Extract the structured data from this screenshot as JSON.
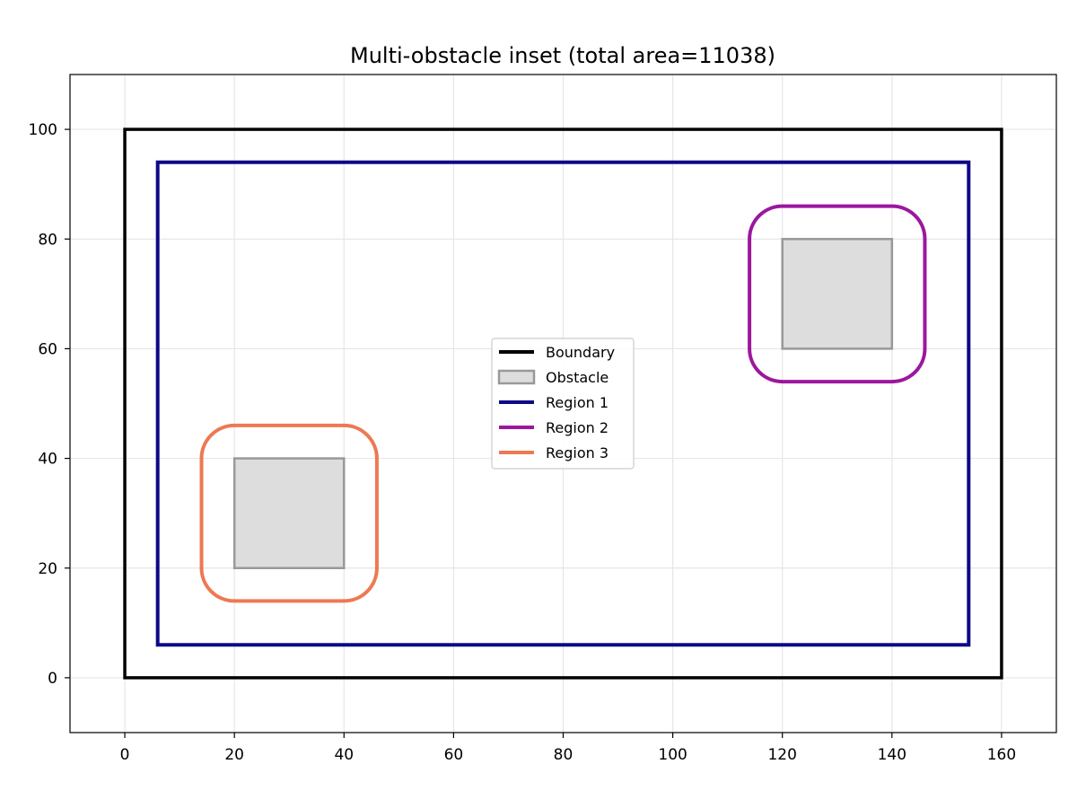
{
  "chart_data": {
    "type": "line",
    "title": "Multi-obstacle inset (total area=11038)",
    "xlabel": "",
    "ylabel": "",
    "xlim": [
      -10,
      170
    ],
    "ylim": [
      -10,
      110
    ],
    "xticks": [
      0,
      20,
      40,
      60,
      80,
      100,
      120,
      140,
      160
    ],
    "yticks": [
      0,
      20,
      40,
      60,
      80,
      100
    ],
    "grid": true,
    "legend_position": "center",
    "series": [
      {
        "name": "Boundary",
        "kind": "rect",
        "x0": 0,
        "y0": 0,
        "x1": 160,
        "y1": 100,
        "radius": 0,
        "color": "#000000",
        "width": 3.5
      },
      {
        "name": "Region 1",
        "kind": "rect",
        "x0": 6,
        "y0": 6,
        "x1": 154,
        "y1": 94,
        "radius": 0,
        "color": "#0d0887",
        "width": 4
      },
      {
        "name": "Region 2",
        "kind": "rect",
        "x0": 114,
        "y0": 54,
        "x1": 146,
        "y1": 86,
        "radius": 6,
        "color": "#9c179e",
        "width": 4
      },
      {
        "name": "Region 3",
        "kind": "rect",
        "x0": 14,
        "y0": 14,
        "x1": 46,
        "y1": 46,
        "radius": 6,
        "color": "#ed7953",
        "width": 4
      }
    ],
    "obstacles": [
      {
        "x0": 20,
        "y0": 20,
        "x1": 40,
        "y1": 40
      },
      {
        "x0": 120,
        "y0": 60,
        "x1": 140,
        "y1": 80
      }
    ],
    "obstacle_style": {
      "fill": "#dddddd",
      "stroke": "#999999"
    },
    "legend": [
      {
        "label": "Boundary",
        "kind": "line",
        "color": "#000000"
      },
      {
        "label": "Obstacle",
        "kind": "patch",
        "color": "#dddddd",
        "edge": "#999999"
      },
      {
        "label": "Region 1",
        "kind": "line",
        "color": "#0d0887"
      },
      {
        "label": "Region 2",
        "kind": "line",
        "color": "#9c179e"
      },
      {
        "label": "Region 3",
        "kind": "line",
        "color": "#ed7953"
      }
    ]
  }
}
